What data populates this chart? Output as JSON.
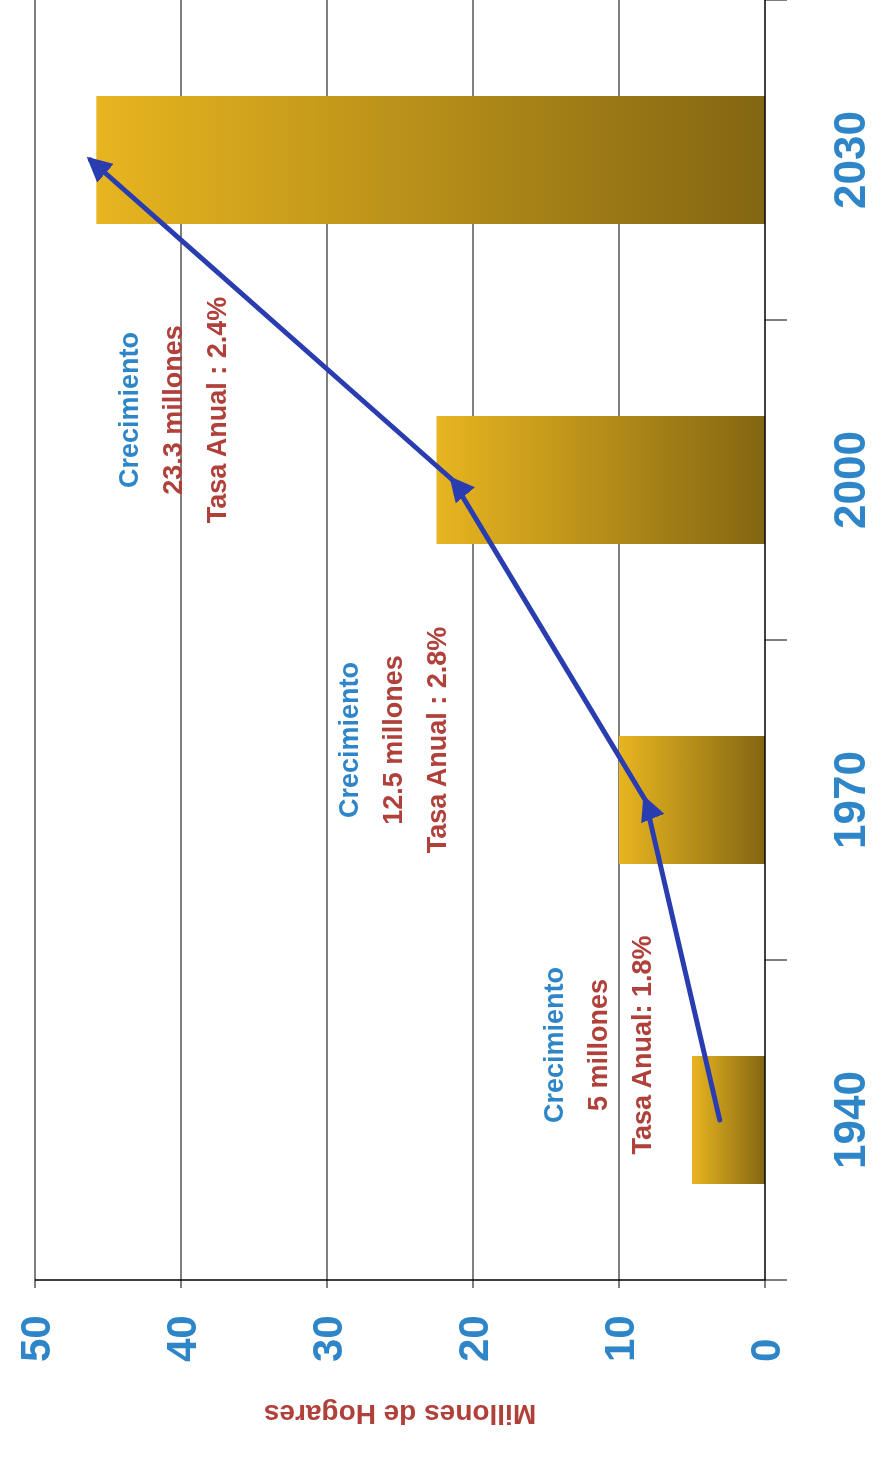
{
  "chart_data": {
    "type": "bar",
    "orientation": "horizontal",
    "xlabel": "Millones de Hogares",
    "categories": [
      "2030",
      "2000",
      "1970",
      "1940"
    ],
    "series": [
      {
        "color": "#e8b520",
        "values": [
          45.8,
          22.5,
          10,
          5
        ]
      },
      {
        "type": "line",
        "color": "#2a3db0",
        "values": [
          46.2,
          21.4,
          8.2,
          3.1
        ]
      }
    ],
    "xlim": [
      50,
      0
    ],
    "xticks": [
      50,
      40,
      30,
      20,
      10,
      0
    ],
    "grid": "x",
    "annotations": [
      "Crecimiento",
      "5 millones",
      "Tasa Anual: 1.8%",
      "Crecimiento",
      "12.5 millones",
      "Tasa Anual : 2.8%",
      "Crecimiento",
      "23.3 millones",
      "Tasa Anual : 2.4%"
    ]
  }
}
